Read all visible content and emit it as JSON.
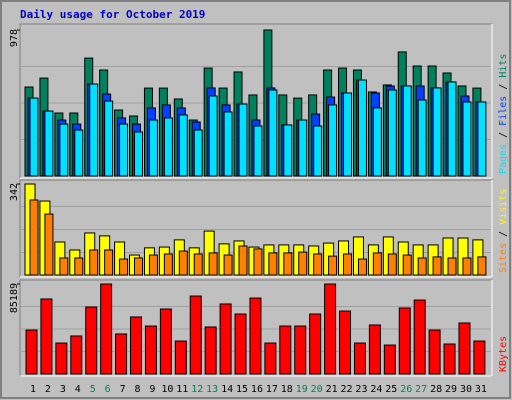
{
  "chart_data": [
    {
      "type": "bar",
      "title": "Daily usage for October 2019",
      "ylim": [
        0,
        978
      ],
      "yticks": [
        978
      ],
      "legend_separator": " / ",
      "series": [
        {
          "name": "Pages",
          "color": "#00e0ff",
          "values": [
            522,
            435,
            348,
            308,
            616,
            502,
            348,
            295,
            375,
            389,
            409,
            308,
            536,
            429,
            482,
            335,
            576,
            342,
            375,
            335,
            476,
            556,
            643,
            456,
            576,
            603,
            509,
            590,
            630,
            496,
            496
          ]
        },
        {
          "name": "Files",
          "color": "#0040ff",
          "values": [
            522,
            435,
            375,
            348,
            616,
            549,
            389,
            348,
            456,
            476,
            456,
            362,
            590,
            476,
            482,
            375,
            590,
            342,
            375,
            415,
            529,
            556,
            643,
            556,
            603,
            603,
            603,
            590,
            630,
            536,
            496
          ]
        },
        {
          "name": "Hits",
          "color": "#00805c",
          "values": [
            596,
            656,
            422,
            422,
            790,
            710,
            442,
            402,
            589,
            589,
            516,
            375,
            723,
            589,
            697,
            543,
            978,
            543,
            522,
            543,
            710,
            723,
            710,
            563,
            610,
            831,
            737,
            737,
            690,
            603,
            589
          ]
        }
      ]
    },
    {
      "type": "bar",
      "ylim": [
        0,
        342
      ],
      "yticks": [
        342
      ],
      "legend_separator": " / ",
      "series": [
        {
          "name": "Sites",
          "color": "#ff8000",
          "values": [
            282,
            229,
            64,
            64,
            94,
            94,
            60,
            64,
            75,
            79,
            90,
            79,
            83,
            75,
            109,
            98,
            83,
            83,
            86,
            79,
            71,
            79,
            60,
            83,
            79,
            75,
            64,
            68,
            64,
            64,
            68
          ]
        },
        {
          "name": "Visits",
          "color": "#ffff00",
          "values": [
            342,
            278,
            124,
            94,
            158,
            147,
            124,
            75,
            102,
            105,
            132,
            102,
            165,
            117,
            128,
            105,
            113,
            113,
            113,
            109,
            120,
            128,
            143,
            113,
            143,
            124,
            113,
            113,
            139,
            139,
            132
          ]
        }
      ]
    },
    {
      "type": "bar",
      "ylim": [
        0,
        85189
      ],
      "yticks": [
        85189
      ],
      "categories": [
        "1",
        "2",
        "3",
        "4",
        "5",
        "6",
        "7",
        "8",
        "9",
        "10",
        "11",
        "12",
        "13",
        "14",
        "15",
        "16",
        "17",
        "18",
        "19",
        "20",
        "21",
        "22",
        "23",
        "24",
        "25",
        "26",
        "27",
        "28",
        "29",
        "30",
        "31"
      ],
      "category_colors": [
        "#000000",
        "#000000",
        "#000000",
        "#000000",
        "#00805c",
        "#00805c",
        "#000000",
        "#000000",
        "#000000",
        "#000000",
        "#000000",
        "#00805c",
        "#00805c",
        "#000000",
        "#000000",
        "#000000",
        "#000000",
        "#000000",
        "#00805c",
        "#00805c",
        "#000000",
        "#000000",
        "#000000",
        "#000000",
        "#000000",
        "#00805c",
        "#00805c",
        "#000000",
        "#000000",
        "#000000",
        "#000000"
      ],
      "series": [
        {
          "name": "KBytes",
          "color": "#ff0000",
          "values": [
            41600,
            71000,
            29300,
            36000,
            63400,
            85189,
            37900,
            54000,
            45400,
            61500,
            31200,
            73800,
            44500,
            66300,
            56800,
            71900,
            29300,
            45400,
            45400,
            56800,
            85189,
            59600,
            29300,
            46400,
            27400,
            62500,
            70000,
            41600,
            28400,
            48300,
            31200
          ]
        }
      ]
    }
  ]
}
